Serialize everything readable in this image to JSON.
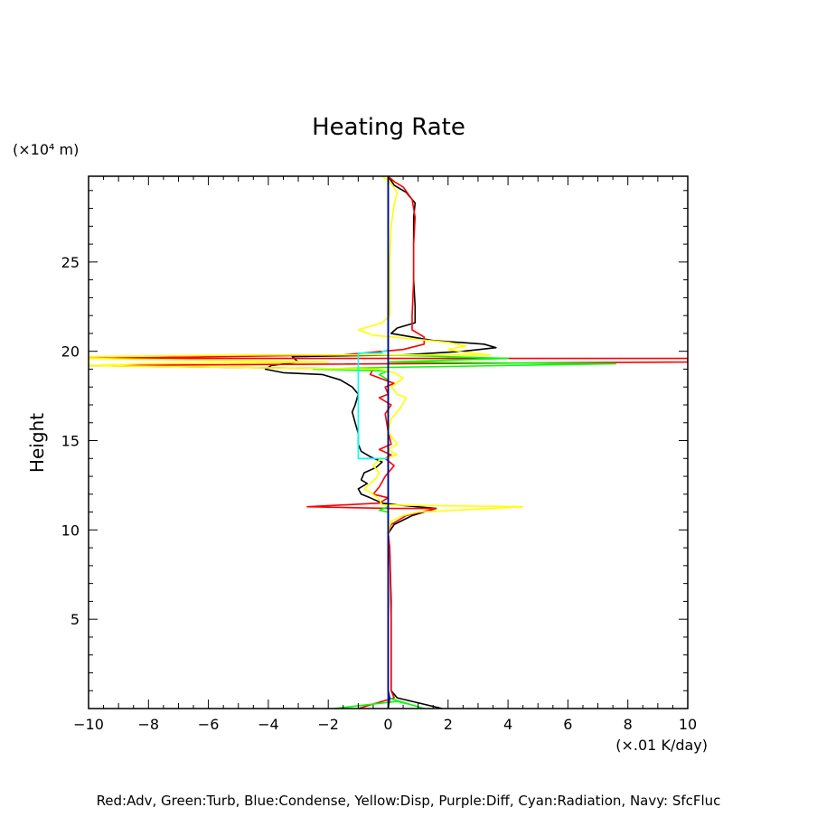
{
  "chart_data": {
    "type": "line",
    "title": "Heating Rate",
    "ylabel": "Height",
    "yunit": "(×10⁴ m)",
    "xunit": "(×.01 K/day)",
    "xlim": [
      -10,
      10
    ],
    "ylim": [
      0,
      29.8
    ],
    "xticks": [
      -10,
      -8,
      -6,
      -4,
      -2,
      0,
      2,
      4,
      6,
      8,
      10
    ],
    "xtick_labels": [
      "−10",
      "−8",
      "−6",
      "−4",
      "−2",
      "0",
      "2",
      "4",
      "6",
      "8",
      "10"
    ],
    "yticks": [
      5,
      10,
      15,
      20,
      25
    ],
    "ytick_labels": [
      "5",
      "10",
      "15",
      "20",
      "25"
    ],
    "footnote": "Red:Adv, Green:Turb, Blue:Condense, Yellow:Disp, Purple:Diff, Cyan:Radiation, Navy: SfcFluc",
    "series": [
      {
        "color": "#000000",
        "points": [
          [
            1.8,
            0
          ],
          [
            0.3,
            0.6
          ],
          [
            0.1,
            1
          ],
          [
            0.1,
            6
          ],
          [
            0.05,
            9
          ],
          [
            0.0,
            9.8
          ],
          [
            0.2,
            10.3
          ],
          [
            0.8,
            10.8
          ],
          [
            1.6,
            11.2
          ],
          [
            0.3,
            11.4
          ],
          [
            -0.2,
            11.5
          ],
          [
            -0.6,
            11.8
          ],
          [
            -0.9,
            12.0
          ],
          [
            -1.0,
            12.3
          ],
          [
            -0.7,
            12.6
          ],
          [
            -0.9,
            12.8
          ],
          [
            -0.8,
            13.2
          ],
          [
            -0.4,
            13.5
          ],
          [
            -0.2,
            13.8
          ],
          [
            -0.6,
            14.1
          ],
          [
            -0.9,
            14.4
          ],
          [
            -1.0,
            14.8
          ],
          [
            -1.0,
            15.4
          ],
          [
            -1.1,
            16.0
          ],
          [
            -1.2,
            16.6
          ],
          [
            -1.1,
            17.0
          ],
          [
            -1.0,
            17.6
          ],
          [
            -1.2,
            18.0
          ],
          [
            -1.6,
            18.4
          ],
          [
            -2.2,
            18.7
          ],
          [
            -3.5,
            18.8
          ],
          [
            -4.1,
            19.0
          ],
          [
            -3.9,
            19.2
          ],
          [
            -3.0,
            19.4
          ],
          [
            -3.2,
            19.7
          ],
          [
            0.5,
            19.8
          ],
          [
            2.5,
            20.0
          ],
          [
            3.6,
            20.2
          ],
          [
            3.2,
            20.4
          ],
          [
            1.5,
            20.6
          ],
          [
            0.1,
            21.0
          ],
          [
            0.3,
            21.3
          ],
          [
            0.9,
            21.6
          ],
          [
            0.9,
            22.5
          ],
          [
            0.85,
            24.0
          ],
          [
            0.85,
            26.0
          ],
          [
            0.85,
            27.5
          ],
          [
            0.9,
            28.3
          ],
          [
            0.6,
            28.9
          ],
          [
            0.2,
            29.3
          ],
          [
            0.0,
            29.8
          ]
        ]
      },
      {
        "color": "#ff0000",
        "points": [
          [
            -1.0,
            0
          ],
          [
            0.2,
            0.6
          ],
          [
            0.1,
            1
          ],
          [
            0.1,
            5
          ],
          [
            0.05,
            9
          ],
          [
            0.0,
            9.8
          ],
          [
            0.1,
            10.3
          ],
          [
            0.6,
            10.8
          ],
          [
            1.6,
            11.2
          ],
          [
            0.1,
            11.2
          ],
          [
            -2.7,
            11.3
          ],
          [
            -0.3,
            11.5
          ],
          [
            0.0,
            11.8
          ],
          [
            -0.5,
            12.0
          ],
          [
            -0.3,
            12.4
          ],
          [
            -0.1,
            13.0
          ],
          [
            0.2,
            13.6
          ],
          [
            -0.1,
            14.0
          ],
          [
            0.1,
            14.2
          ],
          [
            -0.3,
            14.5
          ],
          [
            0.1,
            14.8
          ],
          [
            0.0,
            15.5
          ],
          [
            -0.1,
            16.5
          ],
          [
            0.1,
            17.0
          ],
          [
            -0.3,
            17.4
          ],
          [
            0.0,
            17.6
          ],
          [
            -0.1,
            18.0
          ],
          [
            0.2,
            18.2
          ],
          [
            -0.6,
            18.7
          ],
          [
            -0.5,
            19.0
          ],
          [
            -10,
            19.2
          ],
          [
            10,
            19.4
          ],
          [
            10,
            19.6
          ],
          [
            -10,
            19.6
          ],
          [
            -1.5,
            19.8
          ],
          [
            0.5,
            20.1
          ],
          [
            1.2,
            20.4
          ],
          [
            1.2,
            20.8
          ],
          [
            0.8,
            21.2
          ],
          [
            0.8,
            22.0
          ],
          [
            0.85,
            24.0
          ],
          [
            0.85,
            26.0
          ],
          [
            0.9,
            27.5
          ],
          [
            0.8,
            28.5
          ],
          [
            0.5,
            29.2
          ],
          [
            0.2,
            29.5
          ],
          [
            0.0,
            29.8
          ]
        ]
      },
      {
        "color": "#00ff00",
        "points": [
          [
            -1.8,
            0
          ],
          [
            0.3,
            0.4
          ],
          [
            0.8,
            0.2
          ],
          [
            1.2,
            0
          ],
          [
            0.0,
            0.6
          ],
          [
            0.0,
            9.9
          ],
          [
            0.0,
            11.0
          ],
          [
            -0.3,
            11.1
          ],
          [
            0.0,
            11.3
          ],
          [
            0.0,
            18.4
          ],
          [
            -0.3,
            18.7
          ],
          [
            0.0,
            18.9
          ],
          [
            -2.5,
            19.0
          ],
          [
            0.0,
            19.1
          ],
          [
            7.6,
            19.3
          ],
          [
            0.0,
            19.4
          ],
          [
            4.0,
            19.6
          ],
          [
            0.0,
            19.8
          ],
          [
            0.0,
            29.8
          ]
        ]
      },
      {
        "color": "#ffff00",
        "points": [
          [
            0.0,
            0
          ],
          [
            0.0,
            9.8
          ],
          [
            0.1,
            10.5
          ],
          [
            0.5,
            10.8
          ],
          [
            1.0,
            11.0
          ],
          [
            4.5,
            11.3
          ],
          [
            -0.2,
            11.4
          ],
          [
            -0.3,
            11.7
          ],
          [
            -0.5,
            12.0
          ],
          [
            -0.8,
            12.3
          ],
          [
            -0.6,
            12.6
          ],
          [
            -0.4,
            12.9
          ],
          [
            -0.3,
            13.2
          ],
          [
            -0.5,
            13.6
          ],
          [
            -0.3,
            13.9
          ],
          [
            0.3,
            14.2
          ],
          [
            0.0,
            14.5
          ],
          [
            0.3,
            14.8
          ],
          [
            0.0,
            15.5
          ],
          [
            0.1,
            16.2
          ],
          [
            0.4,
            16.8
          ],
          [
            0.6,
            17.4
          ],
          [
            0.3,
            17.6
          ],
          [
            0.1,
            18.0
          ],
          [
            0.5,
            18.5
          ],
          [
            0.2,
            18.8
          ],
          [
            -0.3,
            19.0
          ],
          [
            -10,
            19.2
          ],
          [
            -8.0,
            19.3
          ],
          [
            -2.0,
            19.4
          ],
          [
            -10,
            19.6
          ],
          [
            -10,
            19.7
          ],
          [
            -4.0,
            19.8
          ],
          [
            3.4,
            19.8
          ],
          [
            2.5,
            19.95
          ],
          [
            2.0,
            20.1
          ],
          [
            2.6,
            20.3
          ],
          [
            2.0,
            20.5
          ],
          [
            -0.5,
            20.9
          ],
          [
            -1.0,
            21.2
          ],
          [
            -0.2,
            21.6
          ],
          [
            0.05,
            22.0
          ],
          [
            0.05,
            25.0
          ],
          [
            0.1,
            27.0
          ],
          [
            0.2,
            28.2
          ],
          [
            0.3,
            28.9
          ],
          [
            0.1,
            29.4
          ],
          [
            -0.2,
            29.8
          ]
        ]
      },
      {
        "color": "#00ffff",
        "points": [
          [
            0.0,
            14.0
          ],
          [
            -1.0,
            14.0
          ],
          [
            -1.0,
            19.9
          ],
          [
            -0.2,
            19.9
          ],
          [
            -0.2,
            20.0
          ],
          [
            0.0,
            20.0
          ]
        ]
      },
      {
        "color": "#0000ff",
        "points": [
          [
            0.0,
            0
          ],
          [
            0.0,
            29.8
          ]
        ]
      },
      {
        "color": "#000080",
        "points": [
          [
            0.0,
            0
          ],
          [
            0.05,
            0.6
          ],
          [
            0.0,
            1.0
          ],
          [
            0.0,
            29.8
          ]
        ]
      }
    ]
  }
}
